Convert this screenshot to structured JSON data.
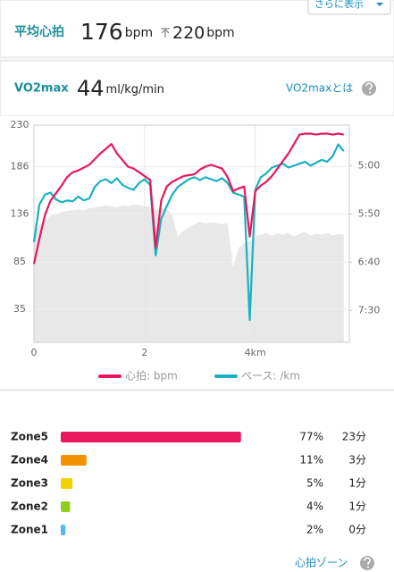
{
  "more_button": "さらに表示",
  "stats": {
    "avg_hr_label": "平均心拍",
    "avg_hr": 176,
    "avg_hr_unit": "bpm",
    "max_hr": 220,
    "max_hr_unit": "bpm",
    "vo2_label": "VO2max",
    "vo2": 44,
    "vo2_unit": "ml/kg/min",
    "vo2_link": "VO2maxとは"
  },
  "chart_data": {
    "type": "line",
    "x": [
      0,
      0.1,
      0.2,
      0.3,
      0.4,
      0.5,
      0.6,
      0.7,
      0.8,
      0.9,
      1.0,
      1.1,
      1.2,
      1.3,
      1.4,
      1.5,
      1.6,
      1.7,
      1.8,
      1.9,
      2.0,
      2.1,
      2.2,
      2.3,
      2.4,
      2.5,
      2.6,
      2.7,
      2.8,
      2.9,
      3.0,
      3.1,
      3.2,
      3.3,
      3.4,
      3.5,
      3.6,
      3.7,
      3.8,
      3.9,
      4.0,
      4.1,
      4.2,
      4.3,
      4.4,
      4.5,
      4.6,
      4.7,
      4.8,
      4.9,
      5.0,
      5.1,
      5.2,
      5.3,
      5.4,
      5.5,
      5.6
    ],
    "xlim": [
      0,
      5.7
    ],
    "xticks": [
      0,
      2,
      {
        "value": 4,
        "label": "4km"
      }
    ],
    "ylim": [
      0,
      230
    ],
    "yticks": [
      35,
      85,
      136,
      186,
      230
    ],
    "y2lim": [
      483,
      258
    ],
    "y2ticks": [
      {
        "value": 300,
        "label": "5:00"
      },
      {
        "value": 350,
        "label": "5:50"
      },
      {
        "value": 400,
        "label": "6:40"
      },
      {
        "value": 450,
        "label": "7:30"
      }
    ],
    "grid": true,
    "area": {
      "color": "#e8e8e8",
      "values": [
        116,
        124,
        130,
        134,
        136,
        138,
        139,
        140,
        141,
        140,
        142,
        143,
        144,
        145,
        144,
        143,
        145,
        144,
        146,
        145,
        144,
        143,
        140,
        142,
        141,
        135,
        112,
        118,
        122,
        125,
        128,
        126,
        127,
        126,
        125,
        126,
        79,
        100,
        105,
        107,
        112,
        114,
        116,
        113,
        115,
        114,
        116,
        112,
        115,
        117,
        113,
        115,
        114,
        116,
        113,
        115,
        114
      ]
    },
    "series": [
      {
        "name": "心拍: bpm",
        "color": "#e8175d",
        "values": [
          83,
          110,
          135,
          150,
          158,
          166,
          175,
          180,
          182,
          185,
          188,
          194,
          200,
          205,
          210,
          200,
          193,
          186,
          184,
          180,
          176,
          172,
          100,
          150,
          165,
          170,
          173,
          176,
          177,
          178,
          183,
          186,
          188,
          186,
          184,
          175,
          160,
          163,
          165,
          112,
          160,
          166,
          170,
          176,
          184,
          192,
          200,
          210,
          220,
          221,
          221,
          220,
          221,
          221,
          220,
          221,
          220
        ]
      },
      {
        "name": "ペース: /km",
        "color": "#1ab1c0",
        "axis": "y2",
        "values": [
          379,
          340,
          330,
          328,
          335,
          338,
          336,
          337,
          332,
          336,
          334,
          322,
          316,
          314,
          318,
          313,
          320,
          323,
          325,
          318,
          314,
          320,
          393,
          355,
          342,
          330,
          322,
          318,
          314,
          312,
          315,
          312,
          314,
          316,
          313,
          318,
          328,
          330,
          332,
          460,
          325,
          312,
          308,
          302,
          300,
          298,
          302,
          300,
          298,
          296,
          300,
          297,
          294,
          296,
          290,
          278,
          285
        ]
      }
    ]
  },
  "zones": {
    "categories": [
      "Zone5",
      "Zone4",
      "Zone3",
      "Zone2",
      "Zone1"
    ],
    "values": [
      77,
      11,
      5,
      4,
      2
    ],
    "value_labels": [
      "77%",
      "11%",
      "5%",
      "4%",
      "2%"
    ],
    "minutes": [
      "23分",
      "3分",
      "1分",
      "1分",
      "0分"
    ],
    "colors": [
      "#e8175d",
      "#f39200",
      "#f2d200",
      "#8fce1e",
      "#5ab4f0"
    ],
    "link": "心拍ゾーン"
  }
}
